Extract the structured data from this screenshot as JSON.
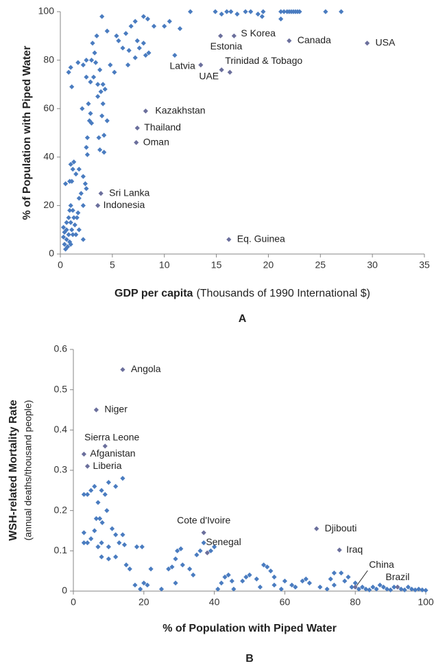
{
  "chart_data": [
    {
      "type": "scatter",
      "panel": "A",
      "ylabel": "% of Population with Piped Water",
      "xlabel_bold": "GDP per capita",
      "xlabel": "(Thousands of 1990 International $)",
      "color": "#4a7cc0",
      "label_color": "#6b6f9c",
      "grid": false,
      "xlim": [
        0,
        35
      ],
      "ylim": [
        0,
        100
      ],
      "xticks": [
        0,
        5,
        10,
        15,
        20,
        25,
        30,
        35
      ],
      "yticks": [
        0,
        20,
        40,
        60,
        80,
        100
      ],
      "x": [
        12.5,
        14.9,
        15.5,
        16.0,
        16.4,
        17.0,
        17.8,
        18.3,
        19.0,
        19.5,
        21.2,
        21.5,
        21.8,
        22.0,
        22.2,
        22.4,
        22.6,
        22.8,
        23.0,
        25.5,
        27.0,
        19.4,
        21.2,
        7.2,
        8.0,
        8.4,
        9.0,
        10.0,
        10.5,
        11.5,
        6.8,
        6.3,
        5.6,
        5.4,
        6.0,
        6.6,
        7.2,
        7.6,
        8.2,
        8.5,
        7.4,
        8.0,
        11.0,
        4.0,
        4.5,
        3.5,
        3.1,
        3.0,
        3.4,
        3.8,
        4.8,
        5.2,
        6.5,
        2.5,
        2.9,
        3.2,
        3.6,
        4.1,
        3.9,
        4.3,
        3.6,
        4.1,
        2.7,
        2.9,
        4.0,
        2.8,
        4.5,
        3.0,
        2.1,
        2.2,
        1.7,
        1.0,
        0.8,
        1.1,
        2.5,
        3.3,
        2.6,
        3.7,
        4.2,
        3.8,
        4.2,
        2.5,
        2.6,
        1.8,
        2.2,
        1.3,
        1.2,
        1.0,
        1.5,
        0.9,
        0.5,
        1.1,
        2.4,
        2.5,
        2.0,
        1.8,
        2.2,
        1.0,
        0.9,
        1.2,
        1.7,
        0.8,
        1.3,
        1.6,
        0.6,
        1.0,
        1.4,
        0.3,
        0.6,
        1.1,
        1.8,
        0.4,
        0.8,
        1.2,
        1.5,
        2.2,
        0.3,
        0.6,
        0.9,
        0.4,
        0.7,
        0.5,
        1.0
      ],
      "y": [
        100,
        100,
        99,
        100,
        100,
        99,
        100,
        100,
        99,
        100,
        100,
        100,
        100,
        100,
        100,
        100,
        100,
        100,
        100,
        100,
        100,
        98,
        97,
        96,
        98,
        97,
        94,
        94,
        96,
        93,
        94,
        91,
        88,
        90,
        85,
        84,
        81,
        85,
        82,
        83,
        88,
        87,
        82,
        98,
        92,
        90,
        87,
        80,
        79,
        76,
        78,
        75,
        78,
        73,
        71,
        73,
        70,
        70,
        67,
        68,
        65,
        62,
        62,
        58,
        57,
        55,
        55,
        54,
        60,
        78,
        79,
        77,
        75,
        69,
        80,
        83,
        48,
        48,
        49,
        43,
        42,
        44,
        41,
        35,
        32,
        38,
        35,
        37,
        33,
        30,
        29,
        30,
        29,
        27,
        25,
        23,
        20,
        20,
        18,
        18,
        17,
        15,
        15,
        15,
        13,
        13,
        12,
        11,
        10,
        10,
        10,
        9,
        8,
        8,
        8,
        6,
        7,
        6,
        5,
        4,
        3,
        2,
        4
      ],
      "labeled_points": [
        {
          "label": "Canada",
          "x": 22,
          "y": 88
        },
        {
          "label": "USA",
          "x": 29.5,
          "y": 87
        },
        {
          "label": "S Korea",
          "x": 16.7,
          "y": 90
        },
        {
          "label": "Estonia",
          "x": 15.4,
          "y": 90
        },
        {
          "label": "Latvia",
          "x": 13.5,
          "y": 78
        },
        {
          "label": "UAE",
          "x": 15.5,
          "y": 76
        },
        {
          "label": "Trinidad & Tobago",
          "x": 16.3,
          "y": 75
        },
        {
          "label": "Kazakhstan",
          "x": 8.2,
          "y": 59
        },
        {
          "label": "Thailand",
          "x": 7.4,
          "y": 52
        },
        {
          "label": "Oman",
          "x": 7.3,
          "y": 46
        },
        {
          "label": "Sri Lanka",
          "x": 3.9,
          "y": 25
        },
        {
          "label": "Indonesia",
          "x": 3.6,
          "y": 20
        },
        {
          "label": "Eq. Guinea",
          "x": 16.2,
          "y": 6
        }
      ]
    },
    {
      "type": "scatter",
      "panel": "B",
      "ylabel": "WSH-related Mortality Rate",
      "ylabel_sub": "(annual deaths/thousand people)",
      "xlabel_bold": "% of Population with Piped Water",
      "color": "#4a7cc0",
      "label_color": "#6b6f9c",
      "grid": false,
      "xlim": [
        0,
        100
      ],
      "ylim": [
        0,
        0.6
      ],
      "xticks": [
        0,
        20,
        40,
        60,
        80,
        100
      ],
      "yticks": [
        0,
        0.1,
        0.2,
        0.3,
        0.4,
        0.5,
        0.6
      ],
      "x": [
        3,
        4,
        5,
        6,
        7,
        8,
        9,
        10,
        12,
        14,
        9.5,
        6.5,
        7.5,
        8.2,
        3,
        6,
        5,
        3,
        4,
        7,
        8,
        10,
        11,
        12,
        14,
        8,
        10,
        12,
        13,
        14.5,
        15,
        16,
        18,
        19.5,
        17.5,
        19,
        20,
        21,
        22,
        25,
        27,
        28,
        29,
        29.5,
        30.5,
        29,
        31,
        33,
        34,
        35,
        36,
        37,
        39,
        40,
        41,
        42,
        43,
        44,
        45,
        45.5,
        48,
        49,
        50,
        52,
        53,
        54,
        55,
        56,
        57,
        57,
        59,
        60,
        62,
        63,
        65,
        66,
        67,
        70,
        72,
        73,
        74,
        74,
        76,
        77,
        78,
        79,
        80,
        81,
        82,
        83,
        84,
        85,
        86,
        87,
        88,
        89,
        90,
        91,
        93,
        94,
        95,
        96,
        97,
        98,
        99,
        100
      ],
      "y": [
        0.24,
        0.24,
        0.25,
        0.26,
        0.22,
        0.25,
        0.24,
        0.27,
        0.26,
        0.28,
        0.2,
        0.18,
        0.18,
        0.17,
        0.145,
        0.15,
        0.13,
        0.12,
        0.12,
        0.11,
        0.12,
        0.11,
        0.155,
        0.14,
        0.14,
        0.085,
        0.08,
        0.085,
        0.12,
        0.115,
        0.065,
        0.055,
        0.11,
        0.11,
        0.015,
        0.005,
        0.02,
        0.015,
        0.055,
        0.005,
        0.055,
        0.06,
        0.08,
        0.1,
        0.105,
        0.02,
        0.065,
        0.055,
        0.04,
        0.09,
        0.1,
        0.12,
        0.1,
        0.11,
        0.005,
        0.02,
        0.035,
        0.04,
        0.025,
        0.005,
        0.025,
        0.035,
        0.04,
        0.03,
        0.01,
        0.065,
        0.06,
        0.05,
        0.035,
        0.015,
        0.005,
        0.025,
        0.015,
        0.01,
        0.025,
        0.03,
        0.02,
        0.01,
        0.005,
        0.03,
        0.045,
        0.015,
        0.045,
        0.025,
        0.035,
        0.01,
        0.02,
        0.005,
        0.01,
        0.005,
        0.003,
        0.01,
        0.005,
        0.015,
        0.01,
        0.005,
        0.003,
        0.01,
        0.005,
        0.003,
        0.01,
        0.005,
        0.003,
        0.005,
        0.003,
        0.002
      ],
      "labeled_points": [
        {
          "label": "Angola",
          "x": 14,
          "y": 0.55
        },
        {
          "label": "Niger",
          "x": 6.5,
          "y": 0.45
        },
        {
          "label": "Sierra Leone",
          "x": 9,
          "y": 0.36
        },
        {
          "label": "Afganistan",
          "x": 3,
          "y": 0.34
        },
        {
          "label": "Liberia",
          "x": 4,
          "y": 0.31
        },
        {
          "label": "Cote d'Ivoire",
          "x": 37,
          "y": 0.145
        },
        {
          "label": "Senegal",
          "x": 38,
          "y": 0.095
        },
        {
          "label": "Djibouti",
          "x": 69,
          "y": 0.155
        },
        {
          "label": "Iraq",
          "x": 75.5,
          "y": 0.102
        },
        {
          "label": "China",
          "x": 80,
          "y": 0.01
        },
        {
          "label": "Brazil",
          "x": 92,
          "y": 0.01
        }
      ]
    }
  ]
}
